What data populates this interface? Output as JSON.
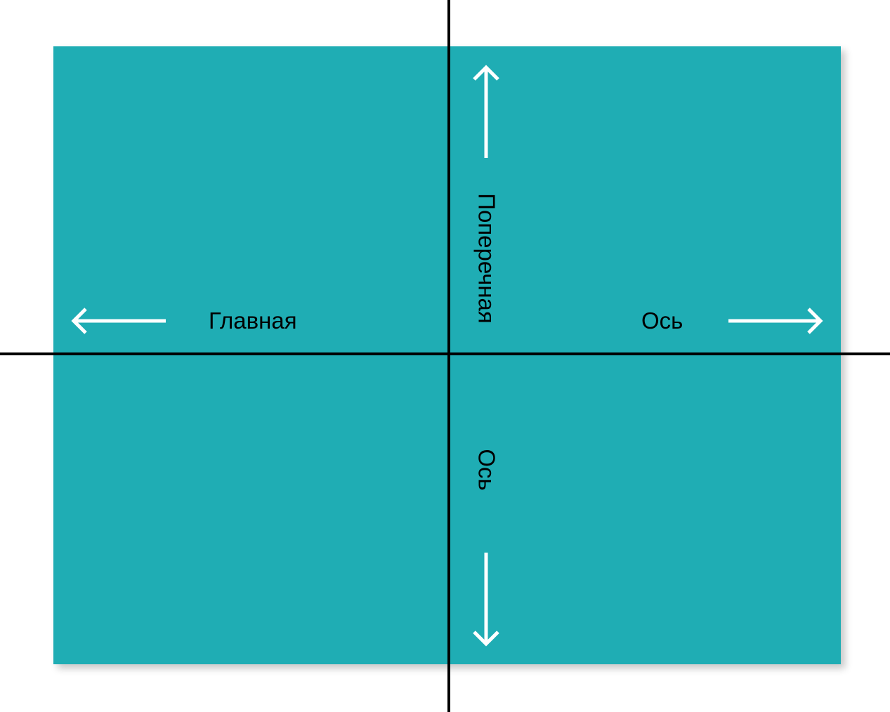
{
  "colors": {
    "panel": "#1FADB4",
    "axis_lines": "#000000",
    "arrows": "#FFFFFF",
    "text": "#000000",
    "background": "#FFFFFF"
  },
  "main_axis": {
    "left_word": "Главная",
    "right_word": "Ось",
    "arrow_left_icon": "arrow-left-icon",
    "arrow_right_icon": "arrow-right-icon"
  },
  "cross_axis": {
    "top_word": "Поперечная",
    "bottom_word": "Ось",
    "arrow_up_icon": "arrow-up-icon",
    "arrow_down_icon": "arrow-down-icon"
  }
}
